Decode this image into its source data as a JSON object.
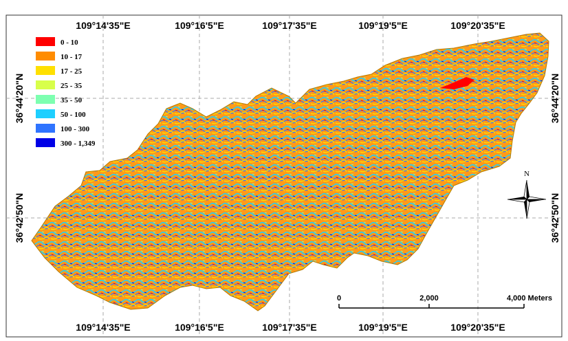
{
  "lon_labels": [
    "109°14'35\"E",
    "109°16'5\"E",
    "109°17'35\"E",
    "109°19'5\"E",
    "109°20'35\"E"
  ],
  "lat_labels": [
    "36°44'20\"N",
    "36°42'50\"N"
  ],
  "legend": [
    {
      "label": "0 - 10",
      "color": "#ff0000"
    },
    {
      "label": "10 - 17",
      "color": "#ff8c00"
    },
    {
      "label": "17 - 25",
      "color": "#ffe000"
    },
    {
      "label": "25 - 35",
      "color": "#d8ff4a"
    },
    {
      "label": "35 - 50",
      "color": "#7dffb0"
    },
    {
      "label": "50 - 100",
      "color": "#1ecfff"
    },
    {
      "label": "100 - 300",
      "color": "#2f74ff"
    },
    {
      "label": "300 - 1,349",
      "color": "#0000e6"
    }
  ],
  "north_label": "N",
  "scale_bar": {
    "labels": [
      "0",
      "2,000",
      "4,000 Meters"
    ]
  }
}
